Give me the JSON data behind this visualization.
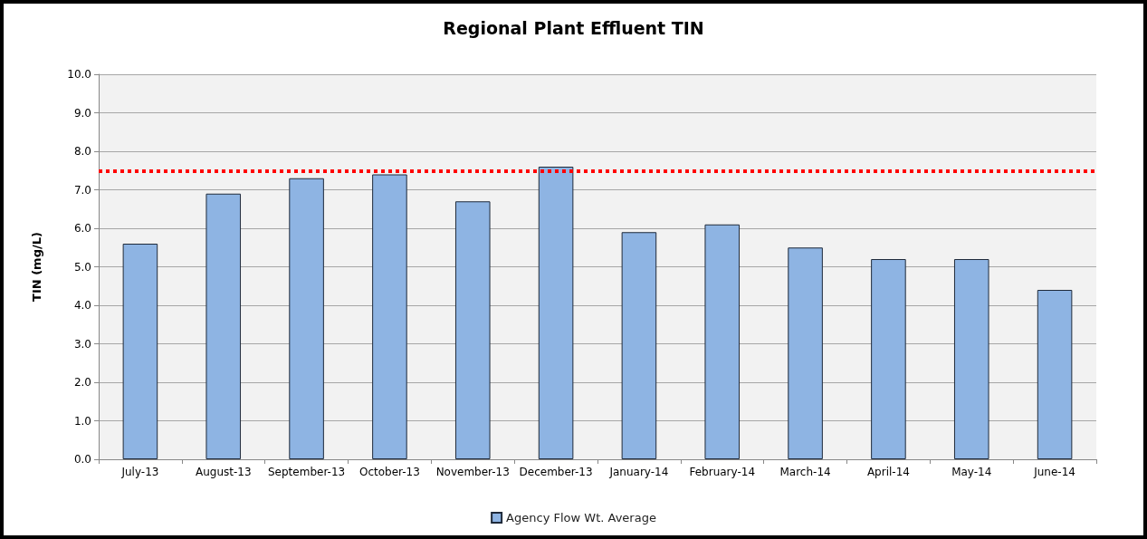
{
  "chart_data": {
    "type": "bar",
    "title": "Regional Plant Effluent TIN",
    "ylabel": "TIN (mg/L)",
    "categories": [
      "July-13",
      "August-13",
      "September-13",
      "October-13",
      "November-13",
      "December-13",
      "January-14",
      "February-14",
      "March-14",
      "April-14",
      "May-14",
      "June-14"
    ],
    "series": [
      {
        "name": "Agency Flow Wt. Average",
        "color": "#8eb4e3",
        "values": [
          5.6,
          6.9,
          7.3,
          7.4,
          6.7,
          7.6,
          5.9,
          6.1,
          5.5,
          5.2,
          5.2,
          4.4
        ]
      }
    ],
    "ylim": [
      0,
      10
    ],
    "yticks": [
      {
        "value": 0,
        "label": "0.0"
      },
      {
        "value": 1,
        "label": "1.0"
      },
      {
        "value": 2,
        "label": "2.0"
      },
      {
        "value": 3,
        "label": "3.0"
      },
      {
        "value": 4,
        "label": "4.0"
      },
      {
        "value": 5,
        "label": "5.0"
      },
      {
        "value": 6,
        "label": "6.0"
      },
      {
        "value": 7,
        "label": "7.0"
      },
      {
        "value": 8,
        "label": "8.0"
      },
      {
        "value": 9,
        "label": "9.0"
      },
      {
        "value": 10,
        "label": "10.0"
      }
    ],
    "grid": "y",
    "legend": "bottom",
    "ref_lines": [
      {
        "axis": "y",
        "value": 7.5,
        "color": "#ff0000",
        "line_style": "dotted"
      }
    ]
  }
}
